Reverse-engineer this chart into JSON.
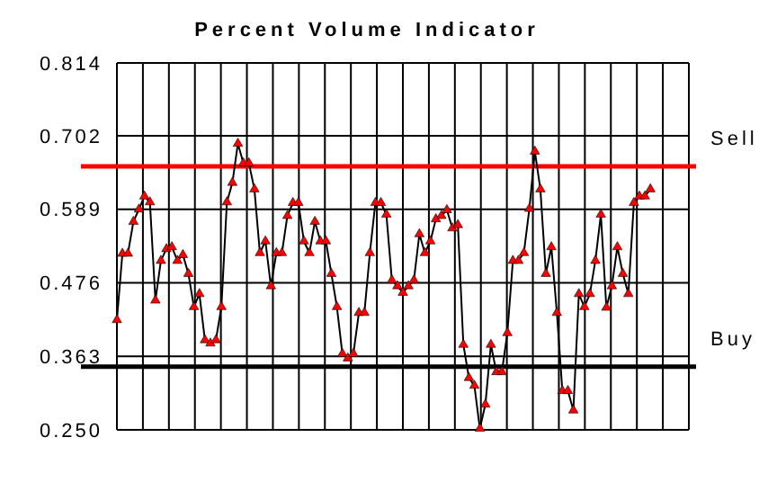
{
  "chart_data": {
    "type": "line",
    "title": "Percent Volume Indicator",
    "categories": [
      null,
      null,
      null,
      null,
      null,
      null,
      null,
      null,
      null,
      null,
      null,
      null,
      null,
      null,
      null,
      null,
      null,
      null,
      null,
      null,
      null,
      null,
      null,
      null,
      null,
      null,
      null,
      null,
      null,
      null,
      null,
      null,
      null,
      null,
      null,
      null,
      null,
      null,
      null,
      null,
      null,
      null,
      null,
      null,
      null,
      null,
      null,
      null,
      null,
      null,
      null,
      null,
      null,
      null,
      null,
      null,
      null,
      null,
      null,
      null,
      null,
      null,
      null,
      null,
      null,
      null,
      null,
      null,
      null,
      null,
      null,
      null,
      null,
      null,
      null,
      null,
      null,
      null,
      null,
      null,
      null,
      null,
      null,
      null,
      null,
      null,
      null,
      null,
      null,
      null,
      null,
      null,
      null,
      null,
      null,
      null,
      null,
      null,
      null,
      null,
      null,
      null,
      null,
      null,
      null
    ],
    "series": [
      {
        "color": "#000000",
        "values": [
          0.419,
          0.521,
          0.521,
          0.57,
          0.589,
          0.609,
          0.6,
          0.449,
          0.51,
          0.528,
          0.531,
          0.51,
          0.519,
          0.49,
          0.439,
          0.459,
          0.388,
          0.383,
          0.388,
          0.439,
          0.6,
          0.63,
          0.69,
          0.66,
          0.66,
          0.62,
          0.522,
          0.54,
          0.471,
          0.522,
          0.522,
          0.579,
          0.599,
          0.599,
          0.54,
          0.522,
          0.57,
          0.54,
          0.54,
          0.49,
          0.439,
          0.367,
          0.36,
          0.367,
          0.43,
          0.43,
          0.522,
          0.599,
          0.599,
          0.581,
          0.48,
          0.471,
          0.461,
          0.471,
          0.48,
          0.551,
          0.522,
          0.54,
          0.574,
          0.579,
          0.588,
          0.56,
          0.565,
          0.381,
          0.33,
          0.318,
          0.252,
          0.289,
          0.381,
          0.339,
          0.339,
          0.399,
          0.51,
          0.51,
          0.522,
          0.59,
          0.678,
          0.62,
          0.49,
          0.531,
          0.43,
          0.31,
          0.31,
          0.28,
          0.459,
          0.439,
          0.459,
          0.51,
          0.581,
          0.438,
          0.471,
          0.531,
          0.49,
          0.459,
          0.599,
          0.609,
          0.609,
          0.62,
          null,
          null,
          null,
          null,
          null,
          null,
          null
        ]
      }
    ],
    "ylim": [
      0.25,
      0.814
    ],
    "yticks": [
      {
        "value": 0.25,
        "label": "0.250"
      },
      {
        "value": 0.363,
        "label": "0.363"
      },
      {
        "value": 0.476,
        "label": "0.476"
      },
      {
        "value": 0.589,
        "label": "0.589"
      },
      {
        "value": 0.702,
        "label": "0.702"
      },
      {
        "value": 0.814,
        "label": "0.814"
      }
    ],
    "ref_lines": [
      {
        "axis": "y",
        "value": 0.655,
        "label": "Sell",
        "color": "#ff0000"
      },
      {
        "axis": "y",
        "value": 0.347,
        "label": "Buy",
        "color": "#000000"
      }
    ],
    "grid": true,
    "marker": "triangle",
    "tick_labels": "y"
  }
}
